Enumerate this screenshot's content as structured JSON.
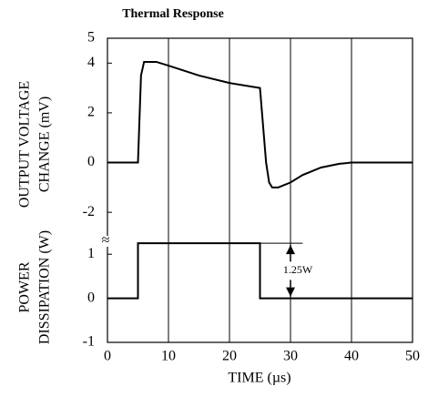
{
  "chart_data": [
    {
      "type": "line",
      "title": "Thermal Response",
      "ylabel": [
        "OUTPUT VOLTAGE",
        "CHANGE (mV)"
      ],
      "xlim": [
        0,
        50
      ],
      "xticks": [
        0,
        10,
        20,
        30,
        40,
        50
      ],
      "ylim": [
        -2.8,
        5
      ],
      "yticks": [
        -2,
        0,
        2,
        4,
        5
      ],
      "grid": true,
      "series": [
        {
          "color": "#000000",
          "x": [
            0,
            5,
            5.5,
            6,
            8,
            10,
            15,
            20,
            25,
            25.5,
            26,
            26.5,
            27,
            28,
            30,
            32,
            35,
            38,
            40,
            45,
            50
          ],
          "values": [
            0,
            0,
            3.5,
            4.05,
            4.05,
            3.9,
            3.5,
            3.2,
            3.0,
            1.5,
            0,
            -0.8,
            -1.0,
            -1.0,
            -0.8,
            -0.5,
            -0.2,
            -0.05,
            0,
            0,
            0
          ]
        }
      ]
    },
    {
      "type": "line",
      "xlabel": "TIME (µs)",
      "ylabel": [
        "POWER",
        "DISSIPATION (W)"
      ],
      "annotation": "1.25W",
      "axis_break": "≈",
      "xlim": [
        0,
        50
      ],
      "xticks": [
        0,
        10,
        20,
        30,
        40,
        50
      ],
      "ylim": [
        -1,
        1.5
      ],
      "yticks": [
        -1,
        0,
        1
      ],
      "grid": true,
      "series": [
        {
          "color": "#000000",
          "x": [
            0,
            5,
            5,
            25,
            25,
            50
          ],
          "values": [
            0,
            0,
            1.25,
            1.25,
            0,
            0
          ]
        }
      ]
    }
  ]
}
